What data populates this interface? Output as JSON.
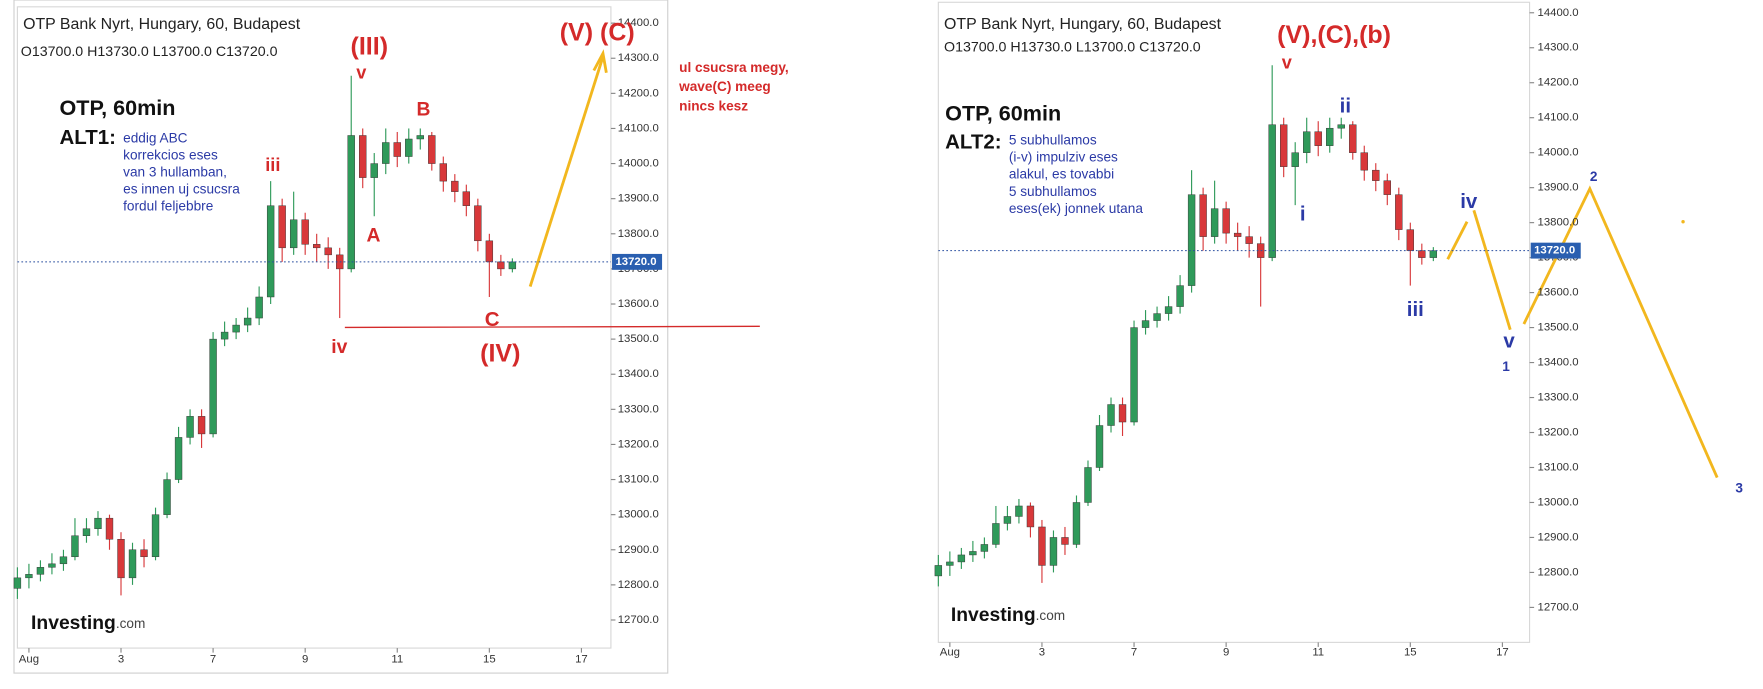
{
  "chart_data": [
    {
      "type": "candlestick",
      "title": "OTP Bank Nyrt, Hungary, 60, Budapest",
      "ohlc_text": "O13700.0  H13730.0  L13700.0  C13720.0",
      "x": [
        -0.25,
        0,
        0.25,
        0.5,
        0.75,
        1,
        1.25,
        1.5,
        1.75,
        2,
        2.25,
        2.5,
        2.75,
        3,
        3.25,
        3.5,
        3.75,
        4,
        4.25,
        4.5,
        4.75,
        5,
        5.25,
        5.5,
        5.75,
        6,
        6.25,
        6.5,
        6.75,
        7,
        7.25,
        7.5,
        7.75,
        8,
        8.25,
        8.5,
        8.75,
        9,
        9.25,
        9.5,
        9.75,
        10,
        10.25,
        10.5
      ],
      "open": [
        12790,
        12820,
        12830,
        12850,
        12860,
        12880,
        12940,
        12960,
        12990,
        12930,
        12820,
        12900,
        12880,
        13000,
        13100,
        13220,
        13280,
        13230,
        13500,
        13520,
        13540,
        13560,
        13620,
        13880,
        13760,
        13840,
        13770,
        13760,
        13740,
        13700,
        14080,
        13960,
        14000,
        14060,
        14020,
        14070,
        14080,
        14000,
        13950,
        13920,
        13880,
        13780,
        13720,
        13700
      ],
      "high": [
        12850,
        12860,
        12870,
        12890,
        12900,
        12990,
        12990,
        13010,
        13000,
        12950,
        12920,
        12930,
        13020,
        13120,
        13250,
        13300,
        13300,
        13520,
        13550,
        13560,
        13590,
        13650,
        13950,
        13900,
        13920,
        13860,
        13800,
        13790,
        13760,
        14250,
        14100,
        14030,
        14100,
        14090,
        14100,
        14100,
        14090,
        14020,
        13970,
        13940,
        13900,
        13800,
        13740,
        13730
      ],
      "low": [
        12760,
        12790,
        12810,
        12830,
        12840,
        12870,
        12920,
        12940,
        12900,
        12770,
        12800,
        12850,
        12870,
        12990,
        13090,
        13200,
        13190,
        13220,
        13480,
        13500,
        13520,
        13540,
        13600,
        13720,
        13740,
        13740,
        13720,
        13700,
        13560,
        13690,
        13930,
        13850,
        13970,
        13990,
        14000,
        14040,
        13980,
        13920,
        13890,
        13850,
        13750,
        13620,
        13680,
        13690
      ],
      "close": [
        12820,
        12830,
        12850,
        12860,
        12880,
        12940,
        12960,
        12990,
        12930,
        12820,
        12900,
        12880,
        13000,
        13100,
        13220,
        13280,
        13230,
        13500,
        13520,
        13540,
        13560,
        13620,
        13880,
        13760,
        13840,
        13770,
        13760,
        13740,
        13700,
        14080,
        13960,
        14000,
        14060,
        14020,
        14070,
        14080,
        14000,
        13950,
        13920,
        13880,
        13780,
        13720,
        13700,
        13720
      ],
      "up_color": "#2f9a5a",
      "down_color": "#d8383a",
      "xlim": [
        -0.25,
        12.64
      ],
      "ylim": [
        12620,
        14440
      ],
      "xticks": [
        {
          "value": 0,
          "label": "Aug"
        },
        {
          "value": 2,
          "label": "3"
        },
        {
          "value": 4,
          "label": "7"
        },
        {
          "value": 6,
          "label": "9"
        },
        {
          "value": 8,
          "label": "11"
        },
        {
          "value": 10,
          "label": "15"
        },
        {
          "value": 12,
          "label": "17"
        }
      ],
      "yticks": [
        {
          "value": 12700,
          "label": "12700.0"
        },
        {
          "value": 12800,
          "label": "12800.0"
        },
        {
          "value": 12900,
          "label": "12900.0"
        },
        {
          "value": 13000,
          "label": "13000.0"
        },
        {
          "value": 13100,
          "label": "13100.0"
        },
        {
          "value": 13200,
          "label": "13200.0"
        },
        {
          "value": 13300,
          "label": "13300.0"
        },
        {
          "value": 13400,
          "label": "13400.0"
        },
        {
          "value": 13500,
          "label": "13500.0"
        },
        {
          "value": 13600,
          "label": "13600.0"
        },
        {
          "value": 13700,
          "label": "13700.0"
        },
        {
          "value": 13800,
          "label": "13800.0"
        },
        {
          "value": 13900,
          "label": "13900.0"
        },
        {
          "value": 14000,
          "label": "14000.0"
        },
        {
          "value": 14100,
          "label": "14100.0"
        },
        {
          "value": 14200,
          "label": "14200.0"
        },
        {
          "value": 14300,
          "label": "14300.0"
        },
        {
          "value": 14400,
          "label": "14400.0"
        }
      ],
      "price_line": {
        "value": 13720,
        "label": "13720.0"
      },
      "logo": [
        "Investing",
        ".com"
      ],
      "annotations": [
        {
          "text": "OTP, 60min",
          "color": "#111111"
        },
        {
          "text": "ALT1:",
          "color": "#111111"
        },
        {
          "text": "eddig ABC",
          "color": "#2b3aa6"
        },
        {
          "text": "korrekcios eses",
          "color": "#2b3aa6"
        },
        {
          "text": "van 3 hullamban,",
          "color": "#2b3aa6"
        },
        {
          "text": "es innen uj csucsra",
          "color": "#2b3aa6"
        },
        {
          "text": "fordul feljebbre",
          "color": "#2b3aa6"
        },
        {
          "text": "(III)",
          "color": "#d42a2a"
        },
        {
          "text": "v",
          "color": "#d42a2a"
        },
        {
          "text": "iii",
          "color": "#d42a2a"
        },
        {
          "text": "B",
          "color": "#d42a2a"
        },
        {
          "text": "A",
          "color": "#d42a2a"
        },
        {
          "text": "iv",
          "color": "#d42a2a"
        },
        {
          "text": "C",
          "color": "#d42a2a"
        },
        {
          "text": "(IV)",
          "color": "#d42a2a"
        },
        {
          "text": "(V) (C)",
          "color": "#d42a2a"
        },
        {
          "text": "ul csucsra megy,",
          "color": "#d42a2a"
        },
        {
          "text": "wave(C) meeg",
          "color": "#d42a2a"
        },
        {
          "text": "nincs kesz",
          "color": "#d42a2a"
        }
      ]
    },
    {
      "type": "candlestick",
      "title": "OTP Bank Nyrt, Hungary, 60, Budapest",
      "ohlc_text": "O13700.0  H13730.0  L13700.0  C13720.0",
      "x": [
        -0.25,
        0,
        0.25,
        0.5,
        0.75,
        1,
        1.25,
        1.5,
        1.75,
        2,
        2.25,
        2.5,
        2.75,
        3,
        3.25,
        3.5,
        3.75,
        4,
        4.25,
        4.5,
        4.75,
        5,
        5.25,
        5.5,
        5.75,
        6,
        6.25,
        6.5,
        6.75,
        7,
        7.25,
        7.5,
        7.75,
        8,
        8.25,
        8.5,
        8.75,
        9,
        9.25,
        9.5,
        9.75,
        10,
        10.25,
        10.5
      ],
      "open": [
        12790,
        12820,
        12830,
        12850,
        12860,
        12880,
        12940,
        12960,
        12990,
        12930,
        12820,
        12900,
        12880,
        13000,
        13100,
        13220,
        13280,
        13230,
        13500,
        13520,
        13540,
        13560,
        13620,
        13880,
        13760,
        13840,
        13770,
        13760,
        13740,
        13700,
        14080,
        13960,
        14000,
        14060,
        14020,
        14070,
        14080,
        14000,
        13950,
        13920,
        13880,
        13780,
        13720,
        13700
      ],
      "high": [
        12850,
        12860,
        12870,
        12890,
        12900,
        12990,
        12990,
        13010,
        13000,
        12950,
        12920,
        12930,
        13020,
        13120,
        13250,
        13300,
        13300,
        13520,
        13550,
        13560,
        13590,
        13650,
        13950,
        13900,
        13920,
        13860,
        13800,
        13790,
        13760,
        14250,
        14100,
        14030,
        14100,
        14090,
        14100,
        14100,
        14090,
        14020,
        13970,
        13940,
        13900,
        13800,
        13740,
        13730
      ],
      "low": [
        12760,
        12790,
        12810,
        12830,
        12840,
        12870,
        12920,
        12940,
        12900,
        12770,
        12800,
        12850,
        12870,
        12990,
        13090,
        13200,
        13190,
        13220,
        13480,
        13500,
        13520,
        13540,
        13600,
        13720,
        13740,
        13740,
        13720,
        13700,
        13560,
        13690,
        13930,
        13850,
        13970,
        13990,
        14000,
        14040,
        13980,
        13920,
        13890,
        13850,
        13750,
        13620,
        13680,
        13690
      ],
      "close": [
        12820,
        12830,
        12850,
        12860,
        12880,
        12940,
        12960,
        12990,
        12930,
        12820,
        12900,
        12880,
        13000,
        13100,
        13220,
        13280,
        13230,
        13500,
        13520,
        13540,
        13560,
        13620,
        13880,
        13760,
        13840,
        13770,
        13760,
        13740,
        13700,
        14080,
        13960,
        14000,
        14060,
        14020,
        14070,
        14080,
        14000,
        13950,
        13920,
        13880,
        13780,
        13720,
        13700,
        13720
      ],
      "up_color": "#2f9a5a",
      "down_color": "#d8383a",
      "xlim": [
        -0.25,
        12.59
      ],
      "ylim": [
        12600,
        14430
      ],
      "xticks": [
        {
          "value": 0,
          "label": "Aug"
        },
        {
          "value": 2,
          "label": "3"
        },
        {
          "value": 4,
          "label": "7"
        },
        {
          "value": 6,
          "label": "9"
        },
        {
          "value": 8,
          "label": "11"
        },
        {
          "value": 10,
          "label": "15"
        },
        {
          "value": 12,
          "label": "17"
        }
      ],
      "yticks": [
        {
          "value": 12700,
          "label": "12700.0"
        },
        {
          "value": 12800,
          "label": "12800.0"
        },
        {
          "value": 12900,
          "label": "12900.0"
        },
        {
          "value": 13000,
          "label": "13000.0"
        },
        {
          "value": 13100,
          "label": "13100.0"
        },
        {
          "value": 13200,
          "label": "13200.0"
        },
        {
          "value": 13300,
          "label": "13300.0"
        },
        {
          "value": 13400,
          "label": "13400.0"
        },
        {
          "value": 13500,
          "label": "13500.0"
        },
        {
          "value": 13600,
          "label": "13600.0"
        },
        {
          "value": 13700,
          "label": "13700.0"
        },
        {
          "value": 13800,
          "label": "13800.0"
        },
        {
          "value": 13900,
          "label": "13900.0"
        },
        {
          "value": 14000,
          "label": "14000.0"
        },
        {
          "value": 14100,
          "label": "14100.0"
        },
        {
          "value": 14200,
          "label": "14200.0"
        },
        {
          "value": 14300,
          "label": "14300.0"
        },
        {
          "value": 14400,
          "label": "14400.0"
        }
      ],
      "price_line": {
        "value": 13720,
        "label": "13720.0"
      },
      "logo": [
        "Investing",
        ".com"
      ],
      "annotations": [
        {
          "text": "OTP, 60min",
          "color": "#111111"
        },
        {
          "text": "ALT2:",
          "color": "#111111"
        },
        {
          "text": "5 subhullamos",
          "color": "#2b3aa6"
        },
        {
          "text": "(i-v) impulziv eses",
          "color": "#2b3aa6"
        },
        {
          "text": "alakul, es tovabbi",
          "color": "#2b3aa6"
        },
        {
          "text": "5 subhullamos",
          "color": "#2b3aa6"
        },
        {
          "text": "eses(ek) jonnek utana",
          "color": "#2b3aa6"
        },
        {
          "text": "(V),(C),(b)",
          "color": "#d42a2a"
        },
        {
          "text": "v",
          "color": "#d42a2a"
        },
        {
          "text": "ii",
          "color": "#2b3aa6"
        },
        {
          "text": "i",
          "color": "#2b3aa6"
        },
        {
          "text": "iii",
          "color": "#2b3aa6"
        },
        {
          "text": "iv",
          "color": "#2b3aa6"
        },
        {
          "text": "v",
          "color": "#2b3aa6"
        },
        {
          "text": "1",
          "color": "#2b3aa6"
        },
        {
          "text": "2",
          "color": "#2b3aa6"
        },
        {
          "text": "3",
          "color": "#2b3aa6"
        }
      ]
    }
  ]
}
